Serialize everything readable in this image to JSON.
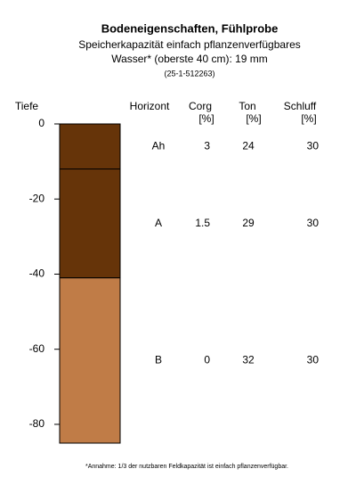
{
  "chart_data": {
    "type": "soil_profile",
    "title": "Bodeneigenschaften, Fühlprobe",
    "subtitle": [
      "Speicherkapazität einfach pflanzenverfügbares",
      "Wasser* (oberste 40 cm): 19 mm",
      "(25-1-512263)"
    ],
    "y_label": "Tiefe",
    "ylim": [
      0,
      -85
    ],
    "yticks": [
      0,
      -20,
      -40,
      -60,
      -80
    ],
    "columns": [
      {
        "name": "Horizont"
      },
      {
        "name": "Corg",
        "unit": "[%]"
      },
      {
        "name": "Ton",
        "unit": "[%]"
      },
      {
        "name": "Schluff",
        "unit": "[%]"
      }
    ],
    "layers": [
      {
        "horizon": "Ah",
        "top": 0,
        "bottom": -12,
        "color": "#663409",
        "corg": 3,
        "ton": 24,
        "schluff": 30
      },
      {
        "horizon": "A",
        "top": -12,
        "bottom": -41,
        "color": "#663409",
        "corg": 1.5,
        "ton": 29,
        "schluff": 30
      },
      {
        "horizon": "B",
        "top": -41,
        "bottom": -85,
        "color": "#c07c47",
        "corg": 0,
        "ton": 32,
        "schluff": 30
      }
    ],
    "footnote": "*Annahme: 1/3 der nutzbaren Feldkapazität ist einfach pflanzenverfügbar."
  }
}
